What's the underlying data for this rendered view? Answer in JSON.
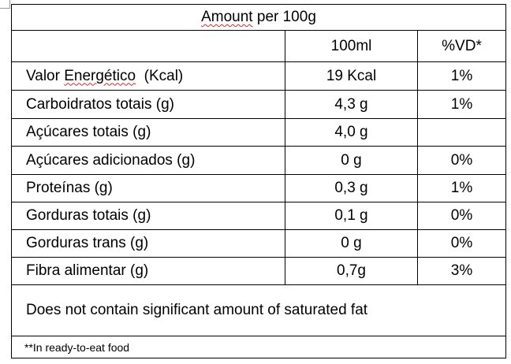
{
  "table": {
    "title_word": "Amount",
    "title_rest": " per 100g",
    "col_ml": "100ml",
    "col_vd": "%VD*",
    "rows": [
      {
        "label_pre": "Valor ",
        "label_mark": "Energético",
        "label_post": "  (Kcal)",
        "ml": "19 Kcal",
        "vd": "1%"
      },
      {
        "label": "Carboidratos totais (g)",
        "ml": "4,3 g",
        "vd": "1%"
      },
      {
        "label": "Açúcares totais (g)",
        "ml": "4,0 g",
        "vd": ""
      },
      {
        "label": "Açúcares adicionados (g)",
        "ml": "0 g",
        "vd": "0%"
      },
      {
        "label": "Proteínas (g)",
        "ml": "0,3 g",
        "vd": "1%"
      },
      {
        "label": "Gorduras totais (g)",
        "ml": "0,1 g",
        "vd": "0%"
      },
      {
        "label": "Gorduras trans (g)",
        "ml": "0 g",
        "vd": "0%"
      },
      {
        "label": "Fibra alimentar (g)",
        "ml": "0,7g",
        "vd": "3%"
      }
    ],
    "note": "Does not contain significant amount of saturated fat",
    "footnote": "**In ready-to-eat food"
  }
}
